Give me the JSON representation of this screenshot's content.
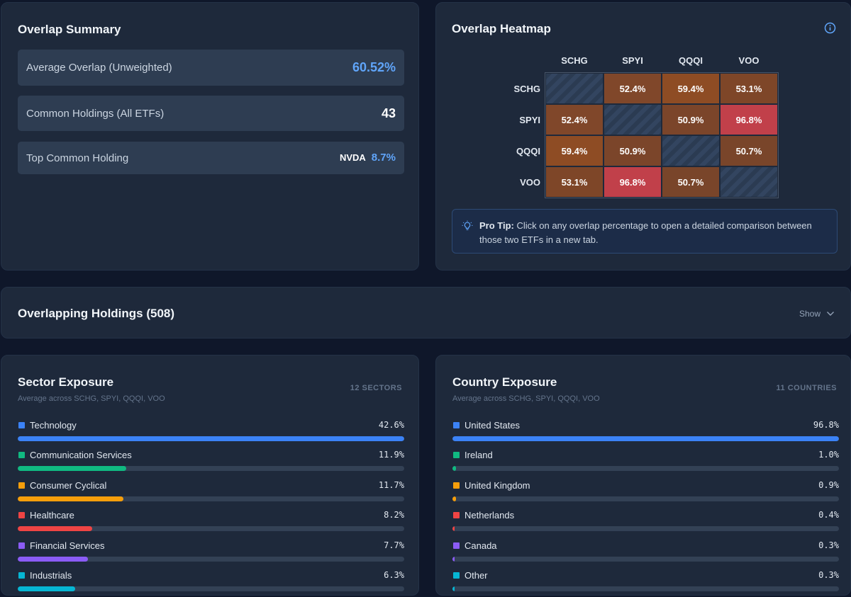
{
  "summary": {
    "title": "Overlap Summary",
    "avg_label": "Average Overlap (Unweighted)",
    "avg_value": "60.52%",
    "common_label": "Common Holdings (All ETFs)",
    "common_value": "43",
    "top_label": "Top Common Holding",
    "top_ticker": "NVDA",
    "top_pct": "8.7%"
  },
  "heatmap": {
    "title": "Overlap Heatmap",
    "info_icon": "info-icon",
    "etfs": [
      "SCHG",
      "SPYI",
      "QQQI",
      "VOO"
    ],
    "matrix": [
      [
        null,
        "52.4%",
        "59.4%",
        "53.1%"
      ],
      [
        "52.4%",
        null,
        "50.9%",
        "96.8%"
      ],
      [
        "59.4%",
        "50.9%",
        null,
        "50.7%"
      ],
      [
        "53.1%",
        "96.8%",
        "50.7%",
        null
      ]
    ],
    "colors": {
      "52.4%": "#80472a",
      "59.4%": "#8e4c24",
      "53.1%": "#7e4628",
      "50.9%": "#7b452a",
      "96.8%": "#c1404a",
      "50.7%": "#79452a"
    },
    "tip_icon": "lightbulb-icon",
    "tip_bold": "Pro Tip:",
    "tip_text": "Click on any overlap percentage to open a detailed comparison between those two ETFs in a new tab."
  },
  "overlapping": {
    "title": "Overlapping Holdings (508)",
    "show_label": "Show",
    "chevron_icon": "chevron-down-icon"
  },
  "sector": {
    "title": "Sector Exposure",
    "subtitle": "Average across SCHG, SPYI, QQQI, VOO",
    "count": "12 SECTORS",
    "items": [
      {
        "name": "Technology",
        "value": "42.6%",
        "pct": 100,
        "color": "#3b82f6"
      },
      {
        "name": "Communication Services",
        "value": "11.9%",
        "pct": 28,
        "color": "#10b981"
      },
      {
        "name": "Consumer Cyclical",
        "value": "11.7%",
        "pct": 27.4,
        "color": "#f59e0b"
      },
      {
        "name": "Healthcare",
        "value": "8.2%",
        "pct": 19.2,
        "color": "#ef4444"
      },
      {
        "name": "Financial Services",
        "value": "7.7%",
        "pct": 18.1,
        "color": "#8b5cf6"
      },
      {
        "name": "Industrials",
        "value": "6.3%",
        "pct": 14.8,
        "color": "#06b6d4"
      }
    ]
  },
  "country": {
    "title": "Country Exposure",
    "subtitle": "Average across SCHG, SPYI, QQQI, VOO",
    "count": "11 COUNTRIES",
    "items": [
      {
        "name": "United States",
        "value": "96.8%",
        "pct": 100,
        "color": "#3b82f6"
      },
      {
        "name": "Ireland",
        "value": "1.0%",
        "pct": 1,
        "color": "#10b981"
      },
      {
        "name": "United Kingdom",
        "value": "0.9%",
        "pct": 0.9,
        "color": "#f59e0b"
      },
      {
        "name": "Netherlands",
        "value": "0.4%",
        "pct": 0.4,
        "color": "#ef4444"
      },
      {
        "name": "Canada",
        "value": "0.3%",
        "pct": 0.3,
        "color": "#8b5cf6"
      },
      {
        "name": "Other",
        "value": "0.3%",
        "pct": 0.3,
        "color": "#06b6d4"
      }
    ]
  }
}
